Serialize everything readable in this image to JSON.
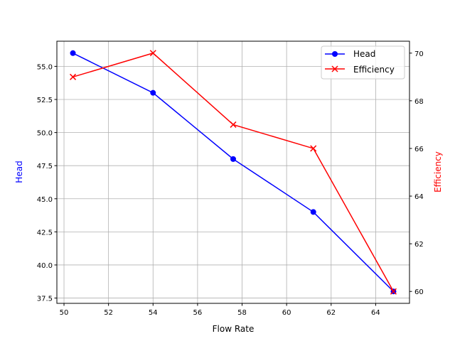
{
  "chart_data": {
    "type": "line",
    "title": "",
    "xlabel": "Flow Rate",
    "ylabel": "Head",
    "y2label": "Efficiency",
    "xlim": [
      49.68,
      65.52
    ],
    "ylim": [
      37.1,
      56.9
    ],
    "y2lim": [
      59.5,
      70.5
    ],
    "xticks": [
      50,
      52,
      54,
      56,
      58,
      60,
      62,
      64
    ],
    "yticks": [
      37.5,
      40.0,
      42.5,
      45.0,
      47.5,
      50.0,
      52.5,
      55.0
    ],
    "y2ticks": [
      60,
      62,
      64,
      66,
      68,
      70
    ],
    "grid": true,
    "legend_position": "top-right",
    "x": [
      50.4,
      54.0,
      57.6,
      61.2,
      64.8
    ],
    "series": [
      {
        "name": "Head",
        "axis": "left",
        "color": "#0000ff",
        "marker": "circle",
        "values": [
          56,
          53,
          48,
          44,
          38
        ]
      },
      {
        "name": "Efficiency",
        "axis": "right",
        "color": "#ff0000",
        "marker": "x",
        "values": [
          69,
          70,
          67,
          66,
          60
        ]
      }
    ]
  }
}
